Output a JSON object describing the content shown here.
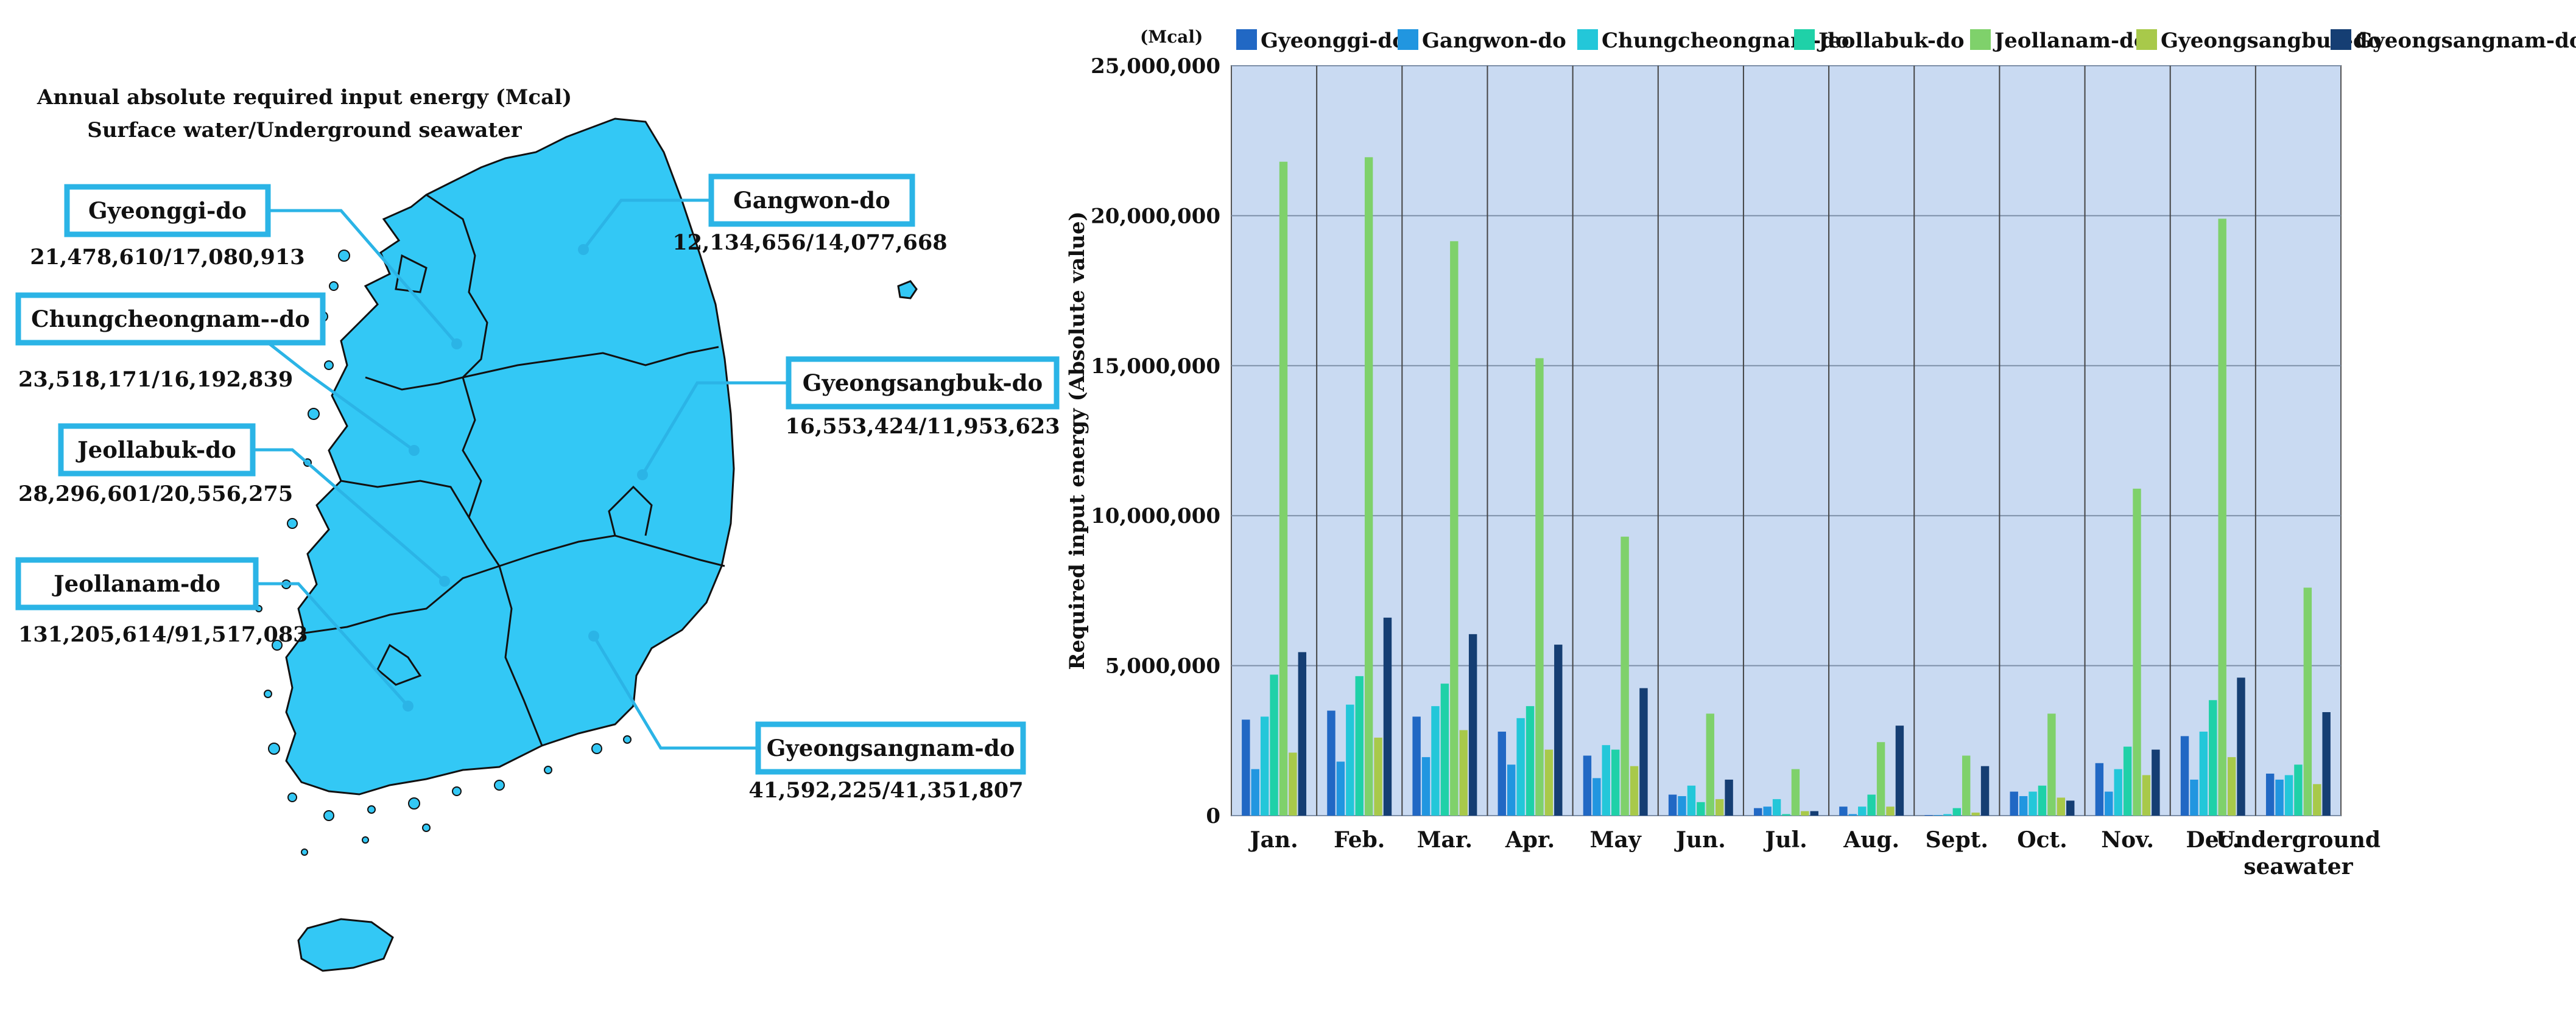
{
  "map": {
    "title_line1": "Annual absolute required input energy (Mcal)",
    "title_line2": "Surface water/Underground seawater",
    "colors": {
      "land": "#33c8f5",
      "border": "#111111",
      "callout": "#2bb4e6"
    },
    "regions": [
      {
        "name": "Gyeonggi-do",
        "value": "21,478,610/17,080,913"
      },
      {
        "name": "Gangwon-do",
        "value": "12,134,656/14,077,668"
      },
      {
        "name": "Chungcheongnam--do",
        "value": "23,518,171/16,192,839"
      },
      {
        "name": "Gyeongsangbuk-do",
        "value": "16,553,424/11,953,623"
      },
      {
        "name": "Jeollabuk-do",
        "value": "28,296,601/20,556,275"
      },
      {
        "name": "Jeollanam-do",
        "value": "131,205,614/91,517,083"
      },
      {
        "name": "Gyeongsangnam-do",
        "value": "41,592,225/41,351,807"
      }
    ]
  },
  "chart_data": {
    "type": "bar",
    "unit_label": "(Mcal)",
    "ylabel": "Required input energy (Absolute value)",
    "xlabel": "",
    "ylim": [
      0,
      25000000
    ],
    "yticks": [
      0,
      5000000,
      10000000,
      15000000,
      20000000,
      25000000
    ],
    "ytick_labels": [
      "0",
      "5,000,000",
      "10,000,000",
      "15,000,000",
      "20,000,000",
      "25,000,000"
    ],
    "grid": true,
    "legend_position": "top",
    "plot_background": "#c9daf2",
    "categories": [
      "Jan.",
      "Feb.",
      "Mar.",
      "Apr.",
      "May",
      "Jun.",
      "Jul.",
      "Aug.",
      "Sept.",
      "Oct.",
      "Nov.",
      "Dec.",
      "Underground seawater"
    ],
    "category_label_lines": [
      [
        "Jan."
      ],
      [
        "Feb."
      ],
      [
        "Mar."
      ],
      [
        "Apr."
      ],
      [
        "May"
      ],
      [
        "Jun."
      ],
      [
        "Jul."
      ],
      [
        "Aug."
      ],
      [
        "Sept."
      ],
      [
        "Oct."
      ],
      [
        "Nov."
      ],
      [
        "Dec."
      ],
      [
        "Underground",
        "seawater"
      ]
    ],
    "series": [
      {
        "name": "Gyeonggi-do",
        "color": "#2168c4",
        "values": [
          3200000,
          3500000,
          3300000,
          2800000,
          2000000,
          700000,
          250000,
          300000,
          20000,
          800000,
          1750000,
          2650000,
          1400000
        ]
      },
      {
        "name": "Gangwon-do",
        "color": "#2196e0",
        "values": [
          1550000,
          1800000,
          1950000,
          1700000,
          1250000,
          650000,
          300000,
          50000,
          20000,
          650000,
          800000,
          1200000,
          1200000
        ]
      },
      {
        "name": "Chungcheongnam-do",
        "color": "#23c7d9",
        "values": [
          3300000,
          3700000,
          3650000,
          3250000,
          2350000,
          1000000,
          550000,
          300000,
          50000,
          800000,
          1550000,
          2800000,
          1350000
        ]
      },
      {
        "name": "Jeollabuk-do",
        "color": "#1fd1a8",
        "values": [
          4700000,
          4650000,
          4400000,
          3650000,
          2200000,
          450000,
          50000,
          700000,
          250000,
          1000000,
          2300000,
          3850000,
          1700000
        ]
      },
      {
        "name": "Jeollanam-do",
        "color": "#7fd16b",
        "values": [
          21800000,
          21950000,
          19150000,
          15250000,
          9300000,
          3400000,
          1550000,
          2450000,
          2000000,
          3400000,
          10900000,
          19900000,
          7600000
        ]
      },
      {
        "name": "Gyeongsangbuk-do",
        "color": "#a8c94a",
        "values": [
          2100000,
          2600000,
          2850000,
          2200000,
          1650000,
          550000,
          150000,
          300000,
          100000,
          600000,
          1350000,
          1950000,
          1050000
        ]
      },
      {
        "name": "Gyeongsangnam-do",
        "color": "#153e73",
        "values": [
          5450000,
          6600000,
          6050000,
          5700000,
          4250000,
          1200000,
          150000,
          3000000,
          1650000,
          500000,
          2200000,
          4600000,
          3450000
        ]
      }
    ]
  }
}
